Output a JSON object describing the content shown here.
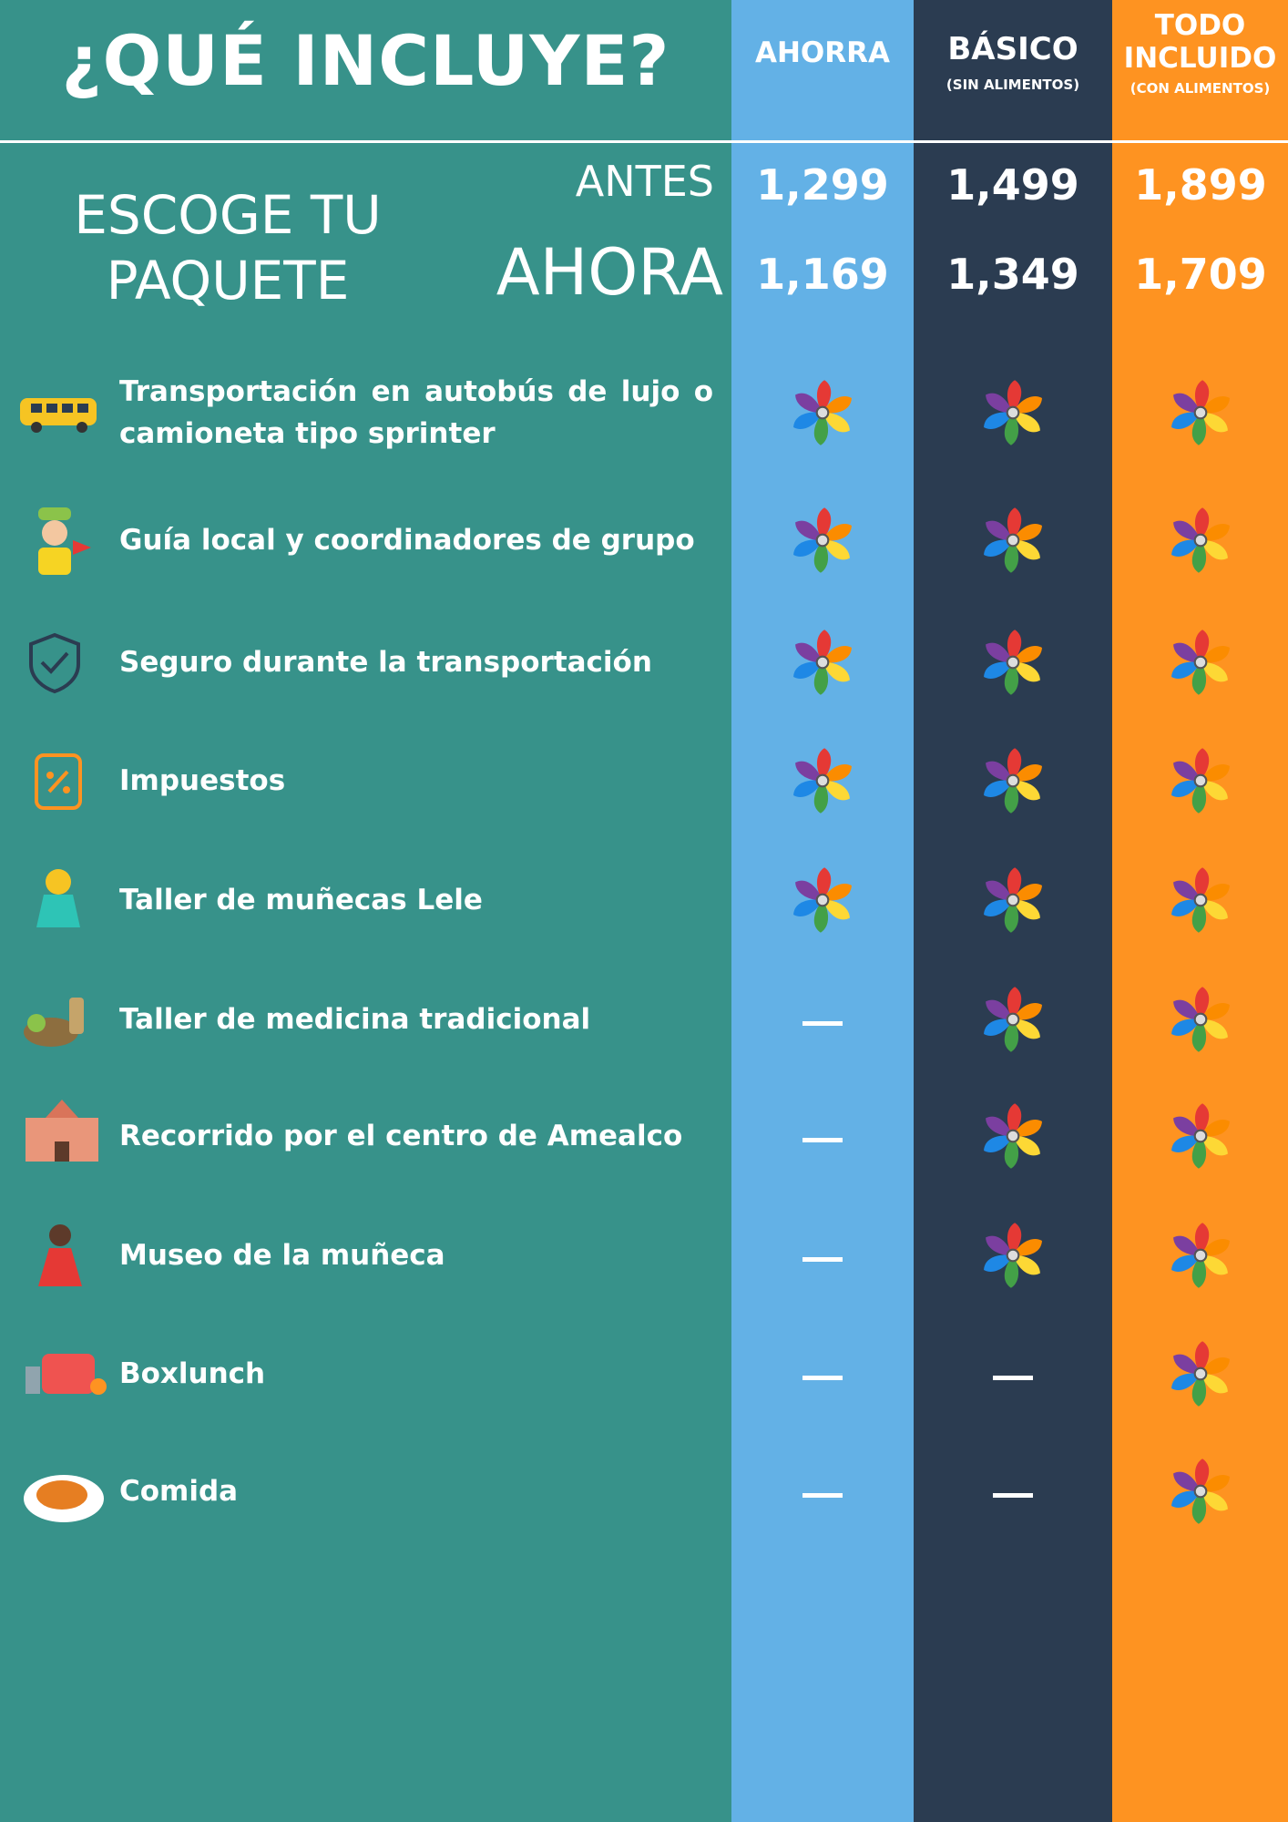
{
  "header": {
    "title": "¿QUÉ INCLUYE?"
  },
  "columns": [
    {
      "name": "AHORRA",
      "sub": null
    },
    {
      "name": "BÁSICO",
      "sub": "(SIN ALIMENTOS)"
    },
    {
      "name": "TODO INCLUIDO",
      "sub": "(CON ALIMENTOS)"
    }
  ],
  "prices": {
    "heading": "ESCOGE TU PAQUETE",
    "before_label": "ANTES",
    "now_label": "AHORA",
    "before": [
      "1,299",
      "1,499",
      "1,899"
    ],
    "now": [
      "1,169",
      "1,349",
      "1,709"
    ]
  },
  "rows": [
    {
      "label": "Transportación en autobús de lujo o camioneta tipo sprinter",
      "included": [
        true,
        true,
        true
      ]
    },
    {
      "label": "Guía local y coordinadores de grupo",
      "included": [
        true,
        true,
        true
      ]
    },
    {
      "label": "Seguro durante la transportación",
      "included": [
        true,
        true,
        true
      ]
    },
    {
      "label": "Impuestos",
      "included": [
        true,
        true,
        true
      ]
    },
    {
      "label": "Taller de muñecas Lele",
      "included": [
        true,
        true,
        true
      ]
    },
    {
      "label": "Taller de medicina tradicional",
      "included": [
        false,
        true,
        true
      ]
    },
    {
      "label": "Recorrido por el centro de Amealco",
      "included": [
        false,
        true,
        true
      ]
    },
    {
      "label": "Museo de la muñeca",
      "included": [
        false,
        true,
        true
      ]
    },
    {
      "label": "Boxlunch",
      "included": [
        false,
        false,
        true
      ]
    },
    {
      "label": "Comida",
      "included": [
        false,
        false,
        true
      ]
    }
  ]
}
